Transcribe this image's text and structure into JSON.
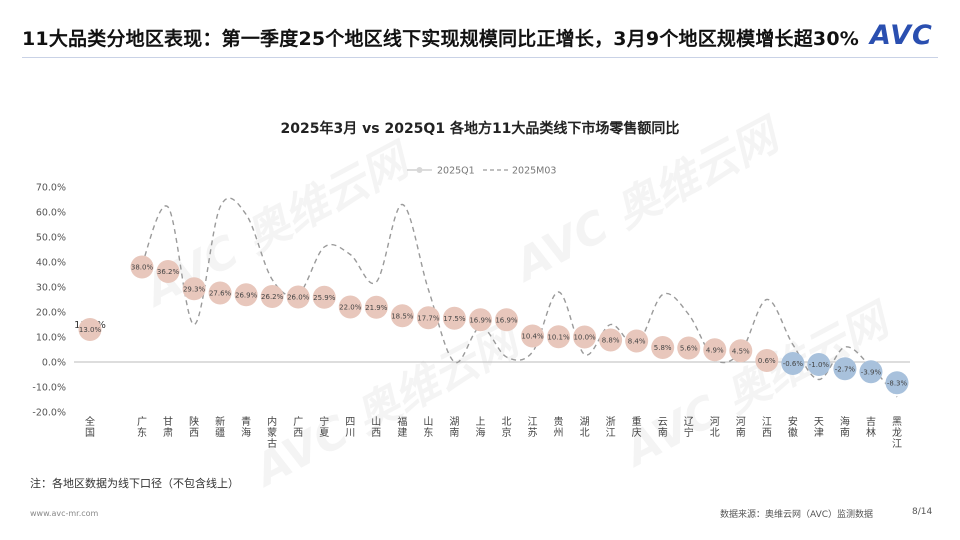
{
  "header": {
    "title": "11大品类分地区表现：第一季度25个地区线下实现规模同比正增长，3月9个地区规模增长超30%",
    "logo": "AVC"
  },
  "watermark": {
    "text": "AVC 奥维云网",
    "sub": "ALL VIEW CLOUD"
  },
  "note": "注：各地区数据为线下口径（不包含线上）",
  "footer": {
    "website": "www.avc-mr.com",
    "source": "数据来源：奥维云网（AVC）监测数据",
    "page": "8/14"
  },
  "colors": {
    "q1_marker": "#e8c7bc",
    "q1_marker_negative": "#a8c1dc",
    "m03_line": "#9a9a9a"
  },
  "chart_data": {
    "type": "line",
    "title": "2025年3月 vs 2025Q1 各地方11大品类线下市场零售额同比",
    "legend_position": "top",
    "ylim": [
      -20,
      70
    ],
    "yticks": [
      "70.0%",
      "60.0%",
      "50.0%",
      "40.0%",
      "30.0%",
      "20.0%",
      "10.0%",
      "0.0%",
      "-10.0%",
      "-20.0%"
    ],
    "categories": [
      "全国",
      "广东",
      "甘肃",
      "陕西",
      "新疆",
      "青海",
      "内蒙古",
      "广西",
      "宁夏",
      "四川",
      "山西",
      "福建",
      "山东",
      "湖南",
      "上海",
      "北京",
      "江苏",
      "贵州",
      "湖北",
      "浙江",
      "重庆",
      "云南",
      "辽宁",
      "河北",
      "河南",
      "江西",
      "安徽",
      "天津",
      "海南",
      "吉林",
      "黑龙江"
    ],
    "series": [
      {
        "name": "2025Q1",
        "values": [
          13.0,
          38.0,
          36.2,
          29.3,
          27.6,
          26.9,
          26.2,
          26.0,
          25.9,
          22.0,
          21.9,
          18.5,
          17.7,
          17.5,
          16.9,
          16.9,
          10.4,
          10.1,
          10.0,
          8.8,
          8.4,
          5.8,
          5.6,
          4.9,
          4.5,
          0.6,
          -0.6,
          -1.0,
          -2.7,
          -3.9,
          -8.3
        ],
        "labels": [
          "13.0%",
          "38.0%",
          "36.2%",
          "29.3%",
          "27.6%",
          "26.9%",
          "26.2%",
          "26.0%",
          "25.9%",
          "22.0%",
          "21.9%",
          "18.5%",
          "17.7%",
          "17.5%",
          "16.9%",
          "16.9%",
          "10.4%",
          "10.1%",
          "10.0%",
          "8.8%",
          "8.4%",
          "5.8%",
          "5.6%",
          "4.9%",
          "4.5%",
          "0.6%",
          "-0.6%",
          "-1.0%",
          "-2.7%",
          "-3.9%",
          "-8.3%"
        ]
      },
      {
        "name": "2025M03",
        "values": [
          15.2,
          39,
          62,
          15,
          62,
          59,
          33,
          27,
          46,
          43,
          32,
          63,
          29,
          0,
          14,
          2,
          4,
          28,
          3,
          15,
          7,
          27,
          19,
          1,
          4,
          25,
          7,
          -7,
          6,
          -2,
          -14
        ],
        "labels": [
          "15.2%"
        ]
      }
    ]
  }
}
